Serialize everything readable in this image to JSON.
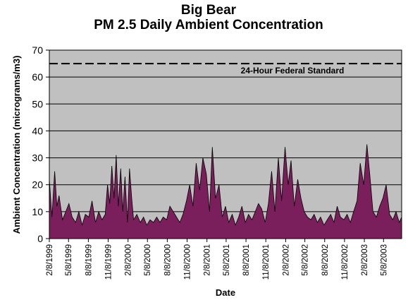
{
  "chart_data": {
    "type": "area",
    "title": "Big Bear",
    "subtitle": "PM 2.5 Daily Ambient Concentration",
    "xlabel": "Date",
    "ylabel": "Ambient Concentration (micrograms/m3)",
    "ylim": [
      0,
      70
    ],
    "yticks": [
      0,
      10,
      20,
      30,
      40,
      50,
      60,
      70
    ],
    "xlim": [
      "1999-02-08",
      "2003-07-31"
    ],
    "xticks": [
      "2/8/1999",
      "5/8/1999",
      "8/8/1999",
      "11/8/1999",
      "2/8/2000",
      "5/8/2000",
      "8/8/2000",
      "11/8/2000",
      "2/8/2001",
      "5/8/2001",
      "8/8/2001",
      "11/8/2001",
      "2/8/2002",
      "5/8/2002",
      "8/8/2002",
      "11/8/2002",
      "2/8/2003",
      "5/8/2003"
    ],
    "grid": true,
    "background": "#c0c0c0",
    "series_color": "#7b1f5c",
    "standard": {
      "label": "24-Hour Federal Standard",
      "value": 65
    },
    "series": [
      {
        "x": [
          "1999-02-08",
          "1999-02-20",
          "1999-03-05",
          "1999-03-15",
          "1999-03-25",
          "1999-04-10",
          "1999-04-25",
          "1999-05-10",
          "1999-05-25",
          "1999-06-10",
          "1999-06-25",
          "1999-07-10",
          "1999-07-25",
          "1999-08-10",
          "1999-08-25",
          "1999-09-10",
          "1999-09-25",
          "1999-10-10",
          "1999-10-25",
          "1999-11-05",
          "1999-11-15",
          "1999-11-25",
          "1999-12-05",
          "1999-12-15",
          "1999-12-25",
          "2000-01-05",
          "2000-01-15",
          "2000-01-25",
          "2000-02-05",
          "2000-02-15",
          "2000-02-25",
          "2000-03-05",
          "2000-03-20",
          "2000-04-05",
          "2000-04-20",
          "2000-05-05",
          "2000-05-20",
          "2000-06-05",
          "2000-06-20",
          "2000-07-05",
          "2000-07-20",
          "2000-08-05",
          "2000-08-20",
          "2000-09-05",
          "2000-09-20",
          "2000-10-05",
          "2000-10-20",
          "2000-11-05",
          "2000-11-20",
          "2000-12-05",
          "2000-12-20",
          "2001-01-05",
          "2001-01-20",
          "2001-02-05",
          "2001-02-20",
          "2001-03-05",
          "2001-03-20",
          "2001-04-05",
          "2001-04-20",
          "2001-05-05",
          "2001-05-20",
          "2001-06-05",
          "2001-06-20",
          "2001-07-05",
          "2001-07-20",
          "2001-08-05",
          "2001-08-20",
          "2001-09-05",
          "2001-09-20",
          "2001-10-05",
          "2001-10-20",
          "2001-11-05",
          "2001-11-20",
          "2001-12-05",
          "2001-12-20",
          "2002-01-05",
          "2002-01-20",
          "2002-02-05",
          "2002-02-20",
          "2002-03-05",
          "2002-03-20",
          "2002-04-05",
          "2002-04-20",
          "2002-05-05",
          "2002-05-20",
          "2002-06-05",
          "2002-06-20",
          "2002-07-05",
          "2002-07-20",
          "2002-08-05",
          "2002-08-20",
          "2002-09-05",
          "2002-09-20",
          "2002-10-05",
          "2002-10-20",
          "2002-11-05",
          "2002-11-20",
          "2002-12-05",
          "2002-12-20",
          "2003-01-05",
          "2003-01-20",
          "2003-02-05",
          "2003-02-20",
          "2003-03-05",
          "2003-03-20",
          "2003-04-05",
          "2003-04-20",
          "2003-05-05",
          "2003-05-20",
          "2003-06-05",
          "2003-06-20",
          "2003-07-05",
          "2003-07-20",
          "2003-07-31"
        ],
        "y": [
          22,
          8,
          25,
          12,
          16,
          7,
          10,
          13,
          8,
          6,
          10,
          5,
          9,
          8,
          14,
          6,
          10,
          7,
          9,
          20,
          13,
          27,
          15,
          31,
          12,
          26,
          10,
          23,
          6,
          26,
          15,
          7,
          9,
          6,
          8,
          5,
          7,
          6,
          8,
          6,
          8,
          7,
          12,
          10,
          8,
          6,
          9,
          14,
          20,
          12,
          28,
          18,
          30,
          24,
          10,
          34,
          15,
          20,
          8,
          12,
          6,
          9,
          5,
          8,
          12,
          6,
          9,
          7,
          10,
          13,
          11,
          6,
          13,
          25,
          10,
          30,
          14,
          34,
          20,
          29,
          12,
          22,
          15,
          10,
          8,
          7,
          9,
          6,
          8,
          5,
          7,
          9,
          6,
          12,
          8,
          7,
          9,
          6,
          10,
          14,
          28,
          20,
          35,
          24,
          10,
          8,
          12,
          15,
          20,
          9,
          7,
          10,
          6,
          8
        ]
      }
    ]
  }
}
